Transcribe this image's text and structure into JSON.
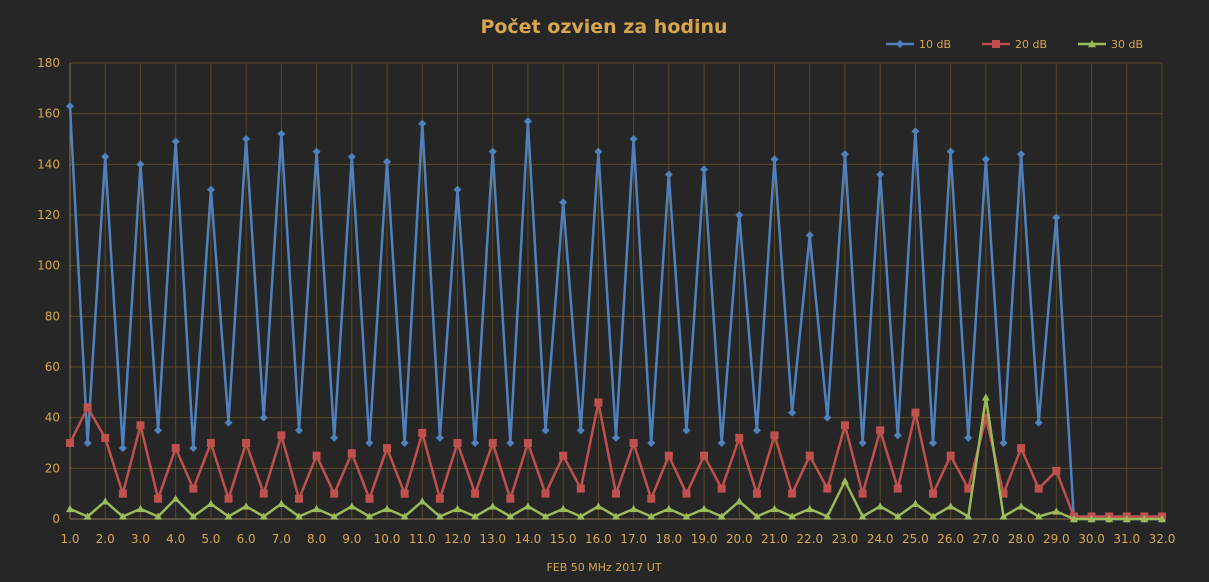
{
  "chart_data": {
    "type": "line",
    "title": "Počet ozvien za hodinu",
    "xlabel": "FEB 50 MHz  2017  UT",
    "ylabel": "",
    "xlim": [
      1.0,
      32.0
    ],
    "ylim": [
      0,
      180
    ],
    "yticks": [
      "0",
      "20",
      "40",
      "60",
      "80",
      "100",
      "120",
      "140",
      "160",
      "180"
    ],
    "xticks": [
      "1.0",
      "2.0",
      "3.0",
      "4.0",
      "5.0",
      "6.0",
      "7.0",
      "8.0",
      "9.0",
      "10.0",
      "11.0",
      "12.0",
      "13.0",
      "14.0",
      "15.0",
      "16.0",
      "17.0",
      "18.0",
      "19.0",
      "20.0",
      "21.0",
      "22.0",
      "23.0",
      "24.0",
      "25.0",
      "26.0",
      "27.0",
      "28.0",
      "29.0",
      "30.0",
      "31.0",
      "32.0"
    ],
    "grid": true,
    "legend_position": "top-right",
    "colors": {
      "background": "#262626",
      "grid": "#5a4a22",
      "text": "#d7a64e",
      "s10": "#4f81bd",
      "s20": "#c0504d",
      "s30": "#9bbb59"
    },
    "series": [
      {
        "name": "10 dB",
        "marker": "diamond",
        "x": [
          1.0,
          1.5,
          2.0,
          2.5,
          3.0,
          3.5,
          4.0,
          4.5,
          5.0,
          5.5,
          6.0,
          6.5,
          7.0,
          7.5,
          8.0,
          8.5,
          9.0,
          9.5,
          10.0,
          10.5,
          11.0,
          11.5,
          12.0,
          12.5,
          13.0,
          13.5,
          14.0,
          14.5,
          15.0,
          15.5,
          16.0,
          16.5,
          17.0,
          17.5,
          18.0,
          18.5,
          19.0,
          19.5,
          20.0,
          20.5,
          21.0,
          21.5,
          22.0,
          22.5,
          23.0,
          23.5,
          24.0,
          24.5,
          25.0,
          25.5,
          26.0,
          26.5,
          27.0,
          27.5,
          28.0,
          28.5,
          29.0,
          29.5,
          30.0,
          30.5,
          31.0,
          31.5,
          32.0
        ],
        "values": [
          163,
          30,
          143,
          28,
          140,
          35,
          149,
          28,
          130,
          38,
          150,
          40,
          152,
          35,
          145,
          32,
          143,
          30,
          141,
          30,
          156,
          32,
          130,
          30,
          145,
          30,
          157,
          35,
          125,
          35,
          145,
          32,
          150,
          30,
          136,
          35,
          138,
          30,
          120,
          35,
          142,
          42,
          112,
          40,
          144,
          30,
          136,
          33,
          153,
          30,
          145,
          32,
          142,
          30,
          144,
          38,
          119,
          0,
          0,
          0,
          0,
          0,
          0
        ]
      },
      {
        "name": "20 dB",
        "marker": "square",
        "x": [
          1.0,
          1.5,
          2.0,
          2.5,
          3.0,
          3.5,
          4.0,
          4.5,
          5.0,
          5.5,
          6.0,
          6.5,
          7.0,
          7.5,
          8.0,
          8.5,
          9.0,
          9.5,
          10.0,
          10.5,
          11.0,
          11.5,
          12.0,
          12.5,
          13.0,
          13.5,
          14.0,
          14.5,
          15.0,
          15.5,
          16.0,
          16.5,
          17.0,
          17.5,
          18.0,
          18.5,
          19.0,
          19.5,
          20.0,
          20.5,
          21.0,
          21.5,
          22.0,
          22.5,
          23.0,
          23.5,
          24.0,
          24.5,
          25.0,
          25.5,
          26.0,
          26.5,
          27.0,
          27.5,
          28.0,
          28.5,
          29.0,
          29.5,
          30.0,
          30.5,
          31.0,
          31.5,
          32.0
        ],
        "values": [
          30,
          44,
          32,
          10,
          37,
          8,
          28,
          12,
          30,
          8,
          30,
          10,
          33,
          8,
          25,
          10,
          26,
          8,
          28,
          10,
          34,
          8,
          30,
          10,
          30,
          8,
          30,
          10,
          25,
          12,
          46,
          10,
          30,
          8,
          25,
          10,
          25,
          12,
          32,
          10,
          33,
          10,
          25,
          12,
          37,
          10,
          35,
          12,
          42,
          10,
          25,
          12,
          40,
          10,
          28,
          12,
          19,
          1,
          1,
          1,
          1,
          1,
          1
        ]
      },
      {
        "name": "30 dB",
        "marker": "triangle",
        "x": [
          1.0,
          1.5,
          2.0,
          2.5,
          3.0,
          3.5,
          4.0,
          4.5,
          5.0,
          5.5,
          6.0,
          6.5,
          7.0,
          7.5,
          8.0,
          8.5,
          9.0,
          9.5,
          10.0,
          10.5,
          11.0,
          11.5,
          12.0,
          12.5,
          13.0,
          13.5,
          14.0,
          14.5,
          15.0,
          15.5,
          16.0,
          16.5,
          17.0,
          17.5,
          18.0,
          18.5,
          19.0,
          19.5,
          20.0,
          20.5,
          21.0,
          21.5,
          22.0,
          22.5,
          23.0,
          23.5,
          24.0,
          24.5,
          25.0,
          25.5,
          26.0,
          26.5,
          27.0,
          27.5,
          28.0,
          28.5,
          29.0,
          29.5,
          30.0,
          30.5,
          31.0,
          31.5,
          32.0
        ],
        "values": [
          4,
          1,
          7,
          1,
          4,
          1,
          8,
          1,
          6,
          1,
          5,
          1,
          6,
          1,
          4,
          1,
          5,
          1,
          4,
          1,
          7,
          1,
          4,
          1,
          5,
          1,
          5,
          1,
          4,
          1,
          5,
          1,
          4,
          1,
          4,
          1,
          4,
          1,
          7,
          1,
          4,
          1,
          4,
          1,
          15,
          1,
          5,
          1,
          6,
          1,
          5,
          1,
          48,
          1,
          5,
          1,
          3,
          0,
          0,
          0,
          0,
          0,
          0
        ]
      }
    ]
  }
}
